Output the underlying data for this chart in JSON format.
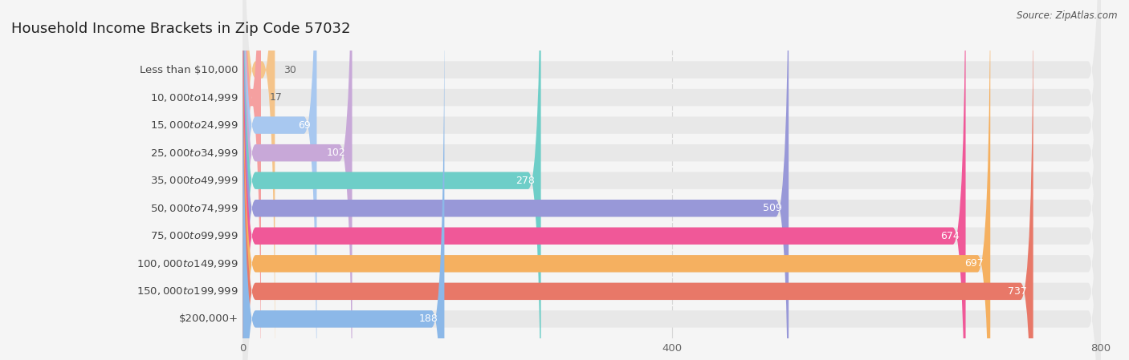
{
  "title": "Household Income Brackets in Zip Code 57032",
  "source": "Source: ZipAtlas.com",
  "categories": [
    "Less than $10,000",
    "$10,000 to $14,999",
    "$15,000 to $24,999",
    "$25,000 to $34,999",
    "$35,000 to $49,999",
    "$50,000 to $74,999",
    "$75,000 to $99,999",
    "$100,000 to $149,999",
    "$150,000 to $199,999",
    "$200,000+"
  ],
  "values": [
    30,
    17,
    69,
    102,
    278,
    509,
    674,
    697,
    737,
    188
  ],
  "bar_colors": [
    "#F5C48A",
    "#F5A0A0",
    "#A8C8F0",
    "#C8A8D8",
    "#6ECEC8",
    "#9898D8",
    "#F05898",
    "#F5B060",
    "#E87868",
    "#8CB8E8"
  ],
  "xlim": [
    0,
    800
  ],
  "xticks": [
    0,
    400,
    800
  ],
  "bg_color": "#f5f5f5",
  "bar_bg_color": "#e8e8e8",
  "title_fontsize": 13,
  "label_fontsize": 9.5,
  "value_fontsize": 9,
  "label_color": "#444444",
  "value_color_inside": "#ffffff",
  "value_color_outside": "#666666",
  "grid_color": "#d8d8d8",
  "source_color": "#555555",
  "title_color": "#222222"
}
